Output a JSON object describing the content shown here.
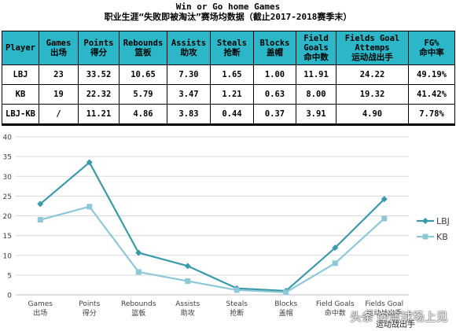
{
  "title": "Win or Go home Games",
  "subtitle": "职业生涯“失败即被淘汰”赛场均数据（截止2017-2018赛季末）",
  "table": {
    "headers": [
      {
        "en": "Player",
        "cn": ""
      },
      {
        "en": "Games",
        "cn": "出场"
      },
      {
        "en": "Points",
        "cn": "得分"
      },
      {
        "en": "Rebounds",
        "cn": "篮板"
      },
      {
        "en": "Assists",
        "cn": "助攻"
      },
      {
        "en": "Steals",
        "cn": "抢断"
      },
      {
        "en": "Blocks",
        "cn": "盖帽"
      },
      {
        "en": "Field Goals",
        "cn": "命中数"
      },
      {
        "en": "Fields Goal Attemps",
        "cn": "运动战出手"
      },
      {
        "en": "FG%",
        "cn": "命中率"
      }
    ],
    "rows": [
      [
        "LBJ",
        "23",
        "33.52",
        "10.65",
        "7.30",
        "1.65",
        "1.00",
        "11.91",
        "24.22",
        "49.19%"
      ],
      [
        "KB",
        "19",
        "22.32",
        "5.79",
        "3.47",
        "1.21",
        "0.63",
        "8.00",
        "19.32",
        "41.42%"
      ],
      [
        "LBJ-KB",
        "/",
        "11.21",
        "4.86",
        "3.83",
        "0.44",
        "0.37",
        "3.91",
        "4.90",
        "7.78%"
      ]
    ]
  },
  "chart_data": {
    "type": "line",
    "categories": [
      [
        "Games",
        "出场"
      ],
      [
        "Points",
        "得分"
      ],
      [
        "Rebounds",
        "篮板"
      ],
      [
        "Assists",
        "助攻"
      ],
      [
        "Steals",
        "抢断"
      ],
      [
        "Blocks",
        "盖帽"
      ],
      [
        "Field Goals",
        "命中数"
      ],
      [
        "Fields Goal",
        "运动战出手"
      ]
    ],
    "series": [
      {
        "name": "LBJ",
        "values": [
          23,
          33.52,
          10.65,
          7.3,
          1.65,
          1.0,
          11.91,
          24.22
        ],
        "color": "#3a9aa9",
        "marker": "diamond"
      },
      {
        "name": "KB",
        "values": [
          19,
          22.32,
          5.79,
          3.47,
          1.21,
          0.63,
          8.0,
          19.32
        ],
        "color": "#8cc8d8",
        "marker": "square"
      }
    ],
    "ylim": [
      0,
      40
    ],
    "yticks": [
      0,
      5,
      10,
      15,
      20,
      25,
      30,
      35,
      40
    ],
    "grid": true,
    "legend": "right"
  },
  "watermark": {
    "line1": "头条 @篮球场上见",
    "line2": "运动战出手"
  },
  "colors": {
    "header_bg": "#2bb7c7",
    "lbj": "#3a9aa9",
    "kb": "#8cc8d8"
  }
}
